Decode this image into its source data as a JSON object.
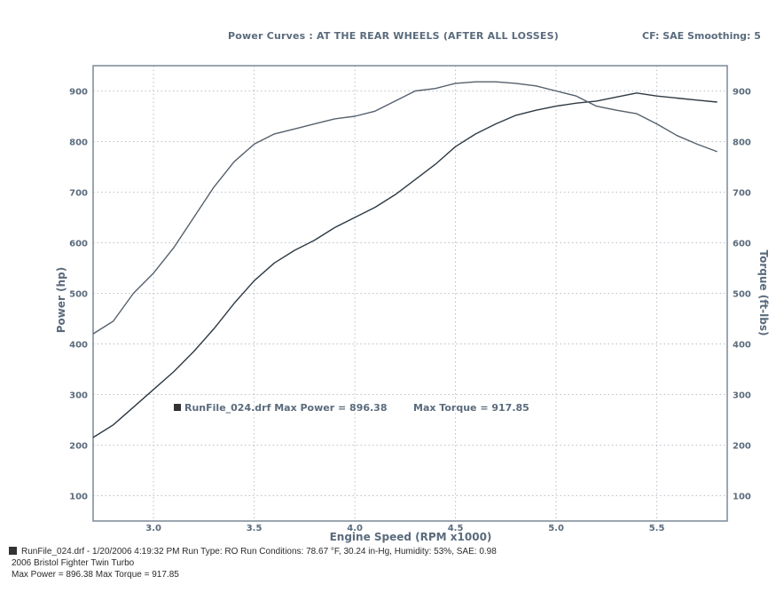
{
  "header": {
    "title": "Power Curves : AT THE REAR WHEELS (AFTER ALL LOSSES)",
    "settings": "CF: SAE  Smoothing: 5"
  },
  "chart_data": {
    "type": "line",
    "xlabel": "Engine Speed (RPM x1000)",
    "ylabel": "Power (hp)",
    "y2label": "Torque (ft-lbs)",
    "xlim": [
      2.7,
      5.85
    ],
    "ylim": [
      50,
      950
    ],
    "x_ticks": [
      "3.0",
      "3.5",
      "4.0",
      "4.5",
      "5.0",
      "5.5"
    ],
    "y_ticks": [
      "100",
      "200",
      "300",
      "400",
      "500",
      "600",
      "700",
      "800",
      "900"
    ],
    "grid": true,
    "legend": {
      "run_label": "RunFile_024.drf Max Power = 896.38",
      "torque_label": "Max Torque = 917.85",
      "placement": "center-left"
    },
    "series": [
      {
        "name": "Power",
        "color": "#2e3a44",
        "x": [
          2.7,
          2.8,
          2.9,
          3.0,
          3.1,
          3.2,
          3.3,
          3.4,
          3.5,
          3.6,
          3.7,
          3.8,
          3.9,
          4.0,
          4.1,
          4.2,
          4.3,
          4.4,
          4.5,
          4.6,
          4.7,
          4.8,
          4.9,
          5.0,
          5.1,
          5.2,
          5.3,
          5.4,
          5.5,
          5.6,
          5.7,
          5.8
        ],
        "values": [
          215,
          240,
          275,
          310,
          345,
          385,
          430,
          480,
          525,
          560,
          585,
          605,
          630,
          650,
          670,
          695,
          725,
          755,
          790,
          815,
          835,
          852,
          862,
          870,
          876,
          880,
          888,
          896,
          890,
          886,
          882,
          878
        ]
      },
      {
        "name": "Torque",
        "color": "#55606b",
        "x": [
          2.7,
          2.8,
          2.9,
          3.0,
          3.1,
          3.2,
          3.3,
          3.4,
          3.5,
          3.6,
          3.7,
          3.8,
          3.9,
          4.0,
          4.1,
          4.2,
          4.3,
          4.4,
          4.5,
          4.6,
          4.7,
          4.8,
          4.9,
          5.0,
          5.1,
          5.2,
          5.3,
          5.4,
          5.5,
          5.6,
          5.7,
          5.8
        ],
        "values": [
          420,
          445,
          500,
          540,
          590,
          650,
          710,
          760,
          795,
          815,
          825,
          835,
          845,
          850,
          860,
          880,
          900,
          905,
          915,
          918,
          918,
          915,
          910,
          900,
          890,
          870,
          862,
          855,
          835,
          812,
          795,
          780
        ]
      }
    ]
  },
  "footer": {
    "line1": "RunFile_024.drf - 1/20/2006 4:19:32 PM  Run Type: RO  Run Conditions: 78.67 °F, 30.24 in-Hg, Humidity: 53%, SAE: 0.98",
    "line2": "2006 Bristol Fighter Twin Turbo",
    "line3": "Max Power = 896.38  Max Torque = 917.85"
  }
}
